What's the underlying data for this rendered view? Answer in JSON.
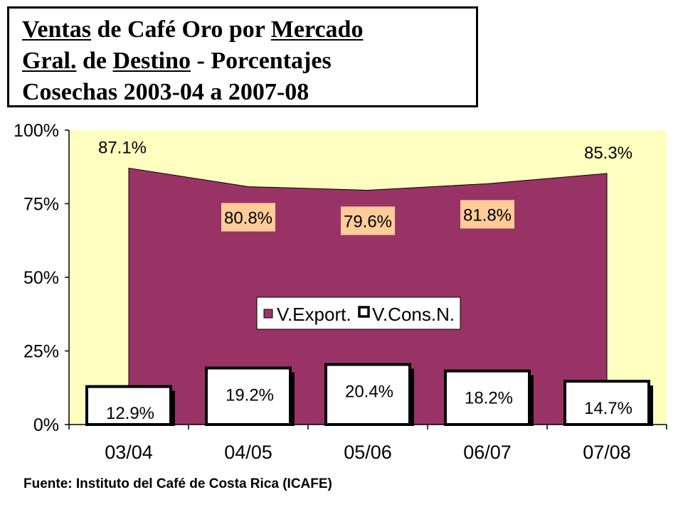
{
  "title": {
    "line1": [
      {
        "text": "Ventas",
        "u": true
      },
      {
        "text": " de Café Oro por ",
        "u": false
      },
      {
        "text": "Mercado",
        "u": true
      }
    ],
    "line2": [
      {
        "text": "Gral.",
        "u": true
      },
      {
        "text": " de ",
        "u": false
      },
      {
        "text": "Destino",
        "u": true
      },
      {
        "text": " - Porcentajes",
        "u": false
      }
    ],
    "line3": [
      {
        "text": "Cosechas 2003-04 a 2007-08",
        "u": false
      }
    ]
  },
  "source": "Fuente: Instituto del Café de Costa Rica (ICAFE)",
  "colors": {
    "plot_bg": "#ffffc0",
    "area": "#993366",
    "bar_fill": "#ffffff",
    "bar_border": "#000000",
    "label_box": "#ffcc99"
  },
  "chart_data": {
    "type": "area",
    "categories": [
      "03/04",
      "04/05",
      "05/06",
      "06/07",
      "07/08"
    ],
    "ylim": [
      0,
      100
    ],
    "yticks": [
      "0%",
      "25%",
      "50%",
      "75%",
      "100%"
    ],
    "series": [
      {
        "name": "V.Export.",
        "type": "area",
        "values": [
          87.1,
          80.8,
          79.6,
          81.8,
          85.3
        ],
        "labels": [
          "87.1%",
          "80.8%",
          "79.6%",
          "81.8%",
          "85.3%"
        ]
      },
      {
        "name": "V.Cons.N.",
        "type": "bar",
        "values": [
          12.9,
          19.2,
          20.4,
          18.2,
          14.7
        ],
        "labels": [
          "12.9%",
          "19.2%",
          "20.4%",
          "18.2%",
          "14.7%"
        ]
      }
    ],
    "legend_position": "center",
    "grid": false
  }
}
